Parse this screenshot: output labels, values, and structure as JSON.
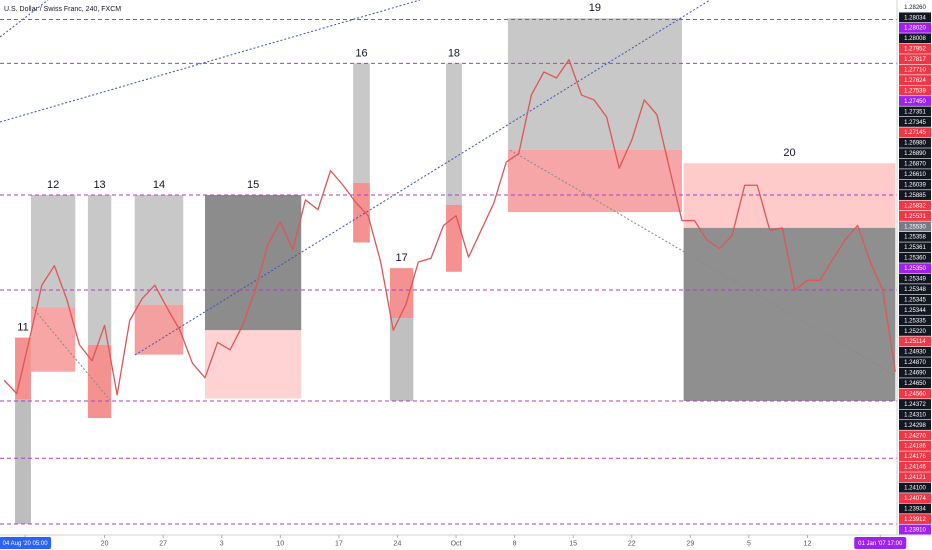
{
  "chart_data": {
    "type": "line",
    "title": "U.S. Dollar / Swiss Franc, 240, FXCM",
    "xlim": [
      7.5,
      114.7
    ],
    "ylim": [
      1.239,
      1.2829
    ],
    "xticks": [
      {
        "value": 10.5,
        "label": "04 Aug '20  05:00"
      },
      {
        "value": 20,
        "label": "20"
      },
      {
        "value": 27,
        "label": "27"
      },
      {
        "value": 34,
        "label": "3"
      },
      {
        "value": 41,
        "label": "10"
      },
      {
        "value": 48,
        "label": "17"
      },
      {
        "value": 55,
        "label": "24"
      },
      {
        "value": 62,
        "label": "Oct"
      },
      {
        "value": 69,
        "label": "8"
      },
      {
        "value": 76,
        "label": "15"
      },
      {
        "value": 83,
        "label": "22"
      },
      {
        "value": 90,
        "label": "29"
      },
      {
        "value": 97,
        "label": "5"
      },
      {
        "value": 104,
        "label": "12"
      },
      {
        "value": 112.7,
        "label": "01 Jan '07  17:00"
      }
    ],
    "series": [
      {
        "color": "#e05555",
        "x": [
          8,
          9.5,
          11,
          12.5,
          14,
          15.5,
          17,
          18.5,
          20,
          21.5,
          23,
          24.5,
          26,
          27.5,
          29,
          30.5,
          32,
          33.5,
          35,
          36.5,
          38,
          39.5,
          41,
          42.5,
          44,
          45.5,
          47,
          48.5,
          50,
          51.5,
          53,
          54.5,
          56,
          57.5,
          59,
          60.5,
          62,
          63.5,
          65,
          66.5,
          68,
          69.5,
          71,
          72.5,
          74,
          75.5,
          77,
          78.5,
          80,
          81.5,
          83,
          84.5,
          86,
          87.5,
          89,
          90.5,
          92,
          93.5,
          95,
          96.5,
          98,
          99.5,
          101,
          102.5,
          104,
          105.5,
          107,
          108.5,
          110,
          111.5,
          113,
          114.5
        ],
        "values": [
          1.2517,
          1.2506,
          1.255,
          1.2595,
          1.2611,
          1.2583,
          1.2546,
          1.2533,
          1.2562,
          1.2505,
          1.2566,
          1.2584,
          1.2595,
          1.2576,
          1.2558,
          1.2531,
          1.2519,
          1.2548,
          1.2542,
          1.2562,
          1.2591,
          1.2628,
          1.2647,
          1.2624,
          1.2665,
          1.2657,
          1.2689,
          1.2677,
          1.2663,
          1.2652,
          1.2614,
          1.2558,
          1.2579,
          1.2614,
          1.2617,
          1.2644,
          1.2652,
          1.2618,
          1.264,
          1.2662,
          1.2696,
          1.2703,
          1.2751,
          1.277,
          1.2765,
          1.278,
          1.2751,
          1.2747,
          1.2733,
          1.2691,
          1.2714,
          1.2747,
          1.2735,
          1.2691,
          1.2648,
          1.2648,
          1.2632,
          1.2625,
          1.2636,
          1.2677,
          1.2677,
          1.264,
          1.2642,
          1.2591,
          1.2599,
          1.2599,
          1.2616,
          1.2632,
          1.2644,
          1.2614,
          1.2591,
          1.2524
        ]
      }
    ],
    "hlines": {
      "color": "#b03cc8",
      "values": [
        1.2813,
        1.2777,
        1.2669,
        1.2591,
        1.25,
        1.2453,
        1.2399
      ]
    },
    "boxes": [
      {
        "label": "11",
        "x": [
          9.3,
          11.2
        ],
        "zones": [
          {
            "top": 1.2552,
            "bottom": 1.2501,
            "color": "#f49292"
          },
          {
            "top": 1.2501,
            "bottom": 1.2399,
            "color": "#bdbdbd"
          }
        ]
      },
      {
        "label": "12",
        "x": [
          11.2,
          16.5
        ],
        "zones": [
          {
            "top": 1.2669,
            "bottom": 1.2577,
            "color": "#c8c8c8"
          },
          {
            "top": 1.2577,
            "bottom": 1.2524,
            "color": "#f7a5a5"
          }
        ]
      },
      {
        "label": "13",
        "x": [
          18.0,
          20.8
        ],
        "zones": [
          {
            "top": 1.2669,
            "bottom": 1.2546,
            "color": "#c8c8c8"
          },
          {
            "top": 1.2546,
            "bottom": 1.2486,
            "color": "#f49292"
          }
        ]
      },
      {
        "label": "14",
        "x": [
          23.6,
          29.4
        ],
        "zones": [
          {
            "top": 1.2669,
            "bottom": 1.2579,
            "color": "#c8c8c8"
          },
          {
            "top": 1.2579,
            "bottom": 1.2538,
            "color": "#f5a0a0"
          }
        ]
      },
      {
        "label": "15",
        "x": [
          32.0,
          43.5
        ],
        "zones": [
          {
            "top": 1.2669,
            "bottom": 1.2558,
            "color": "#8c8c8c"
          },
          {
            "top": 1.2558,
            "bottom": 1.2502,
            "color": "#ffd3d3"
          }
        ]
      },
      {
        "label": "16",
        "x": [
          49.7,
          51.7
        ],
        "zones": [
          {
            "top": 1.2777,
            "bottom": 1.2679,
            "color": "#c8c8c8"
          },
          {
            "top": 1.2679,
            "bottom": 1.263,
            "color": "#f49292"
          }
        ]
      },
      {
        "label": "17",
        "x": [
          54.1,
          56.9
        ],
        "zones": [
          {
            "top": 1.2609,
            "bottom": 1.2568,
            "color": "#f49292"
          },
          {
            "top": 1.2568,
            "bottom": 1.25,
            "color": "#c0c0c0"
          }
        ]
      },
      {
        "label": "18",
        "x": [
          60.8,
          62.7
        ],
        "zones": [
          {
            "top": 1.2777,
            "bottom": 1.2661,
            "color": "#c8c8c8"
          },
          {
            "top": 1.2661,
            "bottom": 1.2606,
            "color": "#f49292"
          }
        ]
      },
      {
        "label": "19",
        "x": [
          68.2,
          89.0
        ],
        "zones": [
          {
            "top": 1.2814,
            "bottom": 1.2706,
            "color": "#c8c8c8"
          },
          {
            "top": 1.2706,
            "bottom": 1.2655,
            "color": "#f6a6a6"
          }
        ]
      },
      {
        "label": "20",
        "x": [
          89.2,
          114.5
        ],
        "zones": [
          {
            "top": 1.2695,
            "bottom": 1.2642,
            "color": "#ffcaca"
          },
          {
            "top": 1.2642,
            "bottom": 1.25,
            "color": "#8f8f8f"
          }
        ]
      }
    ],
    "price_labels": [
      {
        "text": "1.28260",
        "color": "#ffffff"
      },
      {
        "text": "1.28034",
        "color": "#131722"
      },
      {
        "text": "1.28020",
        "color": "#a020f0"
      },
      {
        "text": "1.28008",
        "color": "#131722"
      },
      {
        "text": "1.27952",
        "color": "#f23645"
      },
      {
        "text": "1.27817",
        "color": "#f23645"
      },
      {
        "text": "1.27710",
        "color": "#f23645"
      },
      {
        "text": "1.27624",
        "color": "#f23645"
      },
      {
        "text": "1.27539",
        "color": "#f23645"
      },
      {
        "text": "1.27450",
        "color": "#a020f0"
      },
      {
        "text": "1.27351",
        "color": "#131722"
      },
      {
        "text": "1.27345",
        "color": "#131722"
      },
      {
        "text": "1.27145",
        "color": "#f23645"
      },
      {
        "text": "1.26980",
        "color": "#131722"
      },
      {
        "text": "1.26890",
        "color": "#131722"
      },
      {
        "text": "1.26870",
        "color": "#131722"
      },
      {
        "text": "1.26610",
        "color": "#131722"
      },
      {
        "text": "1.26039",
        "color": "#131722"
      },
      {
        "text": "1.25885",
        "color": "#131722"
      },
      {
        "text": "1.25832",
        "color": "#f23645"
      },
      {
        "text": "1.25531",
        "color": "#f23645"
      },
      {
        "text": "1.25530",
        "color": "#787b86"
      },
      {
        "text": "1.25358",
        "color": "#131722"
      },
      {
        "text": "1.25361",
        "color": "#131722"
      },
      {
        "text": "1.25360",
        "color": "#131722"
      },
      {
        "text": "1.25350",
        "color": "#a020f0"
      },
      {
        "text": "1.25349",
        "color": "#131722"
      },
      {
        "text": "1.25348",
        "color": "#131722"
      },
      {
        "text": "1.25345",
        "color": "#131722"
      },
      {
        "text": "1.25344",
        "color": "#131722"
      },
      {
        "text": "1.25335",
        "color": "#131722"
      },
      {
        "text": "1.25220",
        "color": "#131722"
      },
      {
        "text": "1.25114",
        "color": "#f23645"
      },
      {
        "text": "1.24930",
        "color": "#131722"
      },
      {
        "text": "1.24870",
        "color": "#131722"
      },
      {
        "text": "1.24690",
        "color": "#131722"
      },
      {
        "text": "1.24650",
        "color": "#131722"
      },
      {
        "text": "1.24560",
        "color": "#f23645"
      },
      {
        "text": "1.24372",
        "color": "#131722"
      },
      {
        "text": "1.24310",
        "color": "#131722"
      },
      {
        "text": "1.24298",
        "color": "#131722"
      },
      {
        "text": "1.24270",
        "color": "#f23645"
      },
      {
        "text": "1.24186",
        "color": "#f23645"
      },
      {
        "text": "1.24176",
        "color": "#f23645"
      },
      {
        "text": "1.24146",
        "color": "#f23645"
      },
      {
        "text": "1.24121",
        "color": "#f23645"
      },
      {
        "text": "1.24100",
        "color": "#131722"
      },
      {
        "text": "1.24074",
        "color": "#f23645"
      },
      {
        "text": "1.23934",
        "color": "#131722"
      },
      {
        "text": "1.23912",
        "color": "#f23645"
      },
      {
        "text": "1.23910",
        "color": "#a020f0"
      }
    ]
  }
}
